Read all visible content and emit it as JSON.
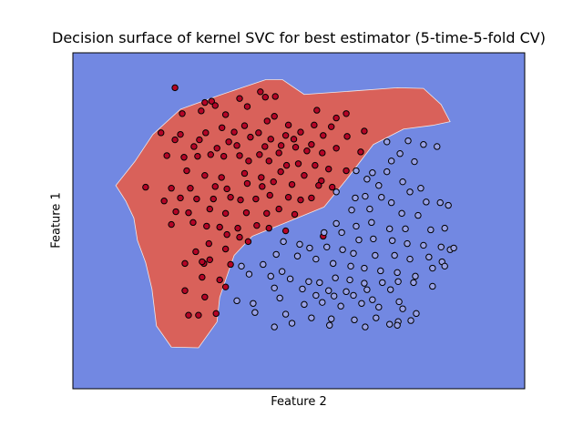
{
  "chart_data": {
    "type": "scatter",
    "title": "Decision surface of kernel SVC for best estimator (5-time-5-fold CV)",
    "xlabel": "Feature 2",
    "ylabel": "Feature 1",
    "xlim": [
      0,
      100
    ],
    "ylim": [
      0,
      100
    ],
    "ticks": "none",
    "grid": false,
    "colors": {
      "background_region": "#7288e2",
      "decision_region": "#d9615a",
      "class_0_point": "#9aa3e8",
      "class_1_point": "#b40426",
      "point_edge": "#000000"
    },
    "decision_region_outline": [
      [
        9.5,
        60.5
      ],
      [
        11.7,
        55.9
      ],
      [
        13.5,
        50.8
      ],
      [
        14.3,
        44.1
      ],
      [
        16.1,
        37.6
      ],
      [
        17.5,
        29.7
      ],
      [
        18.5,
        18.7
      ],
      [
        21.8,
        12.4
      ],
      [
        27.8,
        12.2
      ],
      [
        31.9,
        19.9
      ],
      [
        32.5,
        27.2
      ],
      [
        34.3,
        34.3
      ],
      [
        35.7,
        39.7
      ],
      [
        39.7,
        45.4
      ],
      [
        47.6,
        49.7
      ],
      [
        55.6,
        54.1
      ],
      [
        60.5,
        62.2
      ],
      [
        66.5,
        72.7
      ],
      [
        73.2,
        77.3
      ],
      [
        79.6,
        78.4
      ],
      [
        83.5,
        79.5
      ],
      [
        81.5,
        84.6
      ],
      [
        77.6,
        89.4
      ],
      [
        71.8,
        89.6
      ],
      [
        61.7,
        88.6
      ],
      [
        51.2,
        87.6
      ],
      [
        46.4,
        92.0
      ],
      [
        42.7,
        92.0
      ],
      [
        32.3,
        87.3
      ],
      [
        23.8,
        83.2
      ],
      [
        17.7,
        75.7
      ],
      [
        13.7,
        67.6
      ],
      [
        9.5,
        60.5
      ]
    ],
    "series": [
      {
        "values": [
          [
            22.6,
            89.6
          ],
          [
            41.5,
            88.4
          ],
          [
            44.8,
            87.0
          ],
          [
            42.6,
            86.8
          ],
          [
            36.9,
            86.4
          ],
          [
            30.7,
            85.6
          ],
          [
            29.2,
            85.2
          ],
          [
            31.5,
            84.3
          ],
          [
            38.6,
            84.0
          ],
          [
            28.4,
            82.7
          ],
          [
            24.2,
            81.9
          ],
          [
            33.8,
            81.6
          ],
          [
            44.6,
            81.1
          ],
          [
            54.0,
            82.9
          ],
          [
            60.5,
            81.9
          ],
          [
            58.3,
            80.6
          ],
          [
            43.0,
            79.7
          ],
          [
            38.0,
            78.3
          ],
          [
            33.0,
            77.7
          ],
          [
            47.7,
            78.5
          ],
          [
            53.4,
            78.5
          ],
          [
            57.2,
            78.0
          ],
          [
            35.7,
            76.4
          ],
          [
            19.5,
            76.2
          ],
          [
            23.8,
            75.7
          ],
          [
            29.4,
            76.2
          ],
          [
            41.1,
            76.2
          ],
          [
            47.1,
            75.4
          ],
          [
            50.4,
            76.4
          ],
          [
            55.4,
            75.4
          ],
          [
            60.7,
            75.1
          ],
          [
            64.5,
            76.7
          ],
          [
            22.6,
            74.1
          ],
          [
            28.0,
            74.1
          ],
          [
            34.5,
            73.5
          ],
          [
            39.3,
            74.9
          ],
          [
            43.8,
            74.3
          ],
          [
            48.9,
            74.3
          ],
          [
            52.8,
            72.7
          ],
          [
            26.8,
            72.1
          ],
          [
            31.9,
            71.6
          ],
          [
            36.3,
            72.4
          ],
          [
            42.5,
            72.1
          ],
          [
            46.1,
            72.4
          ],
          [
            49.3,
            71.9
          ],
          [
            51.8,
            70.8
          ],
          [
            55.2,
            70.2
          ],
          [
            58.3,
            71.6
          ],
          [
            63.7,
            70.5
          ],
          [
            36.9,
            69.4
          ],
          [
            41.3,
            69.7
          ],
          [
            45.6,
            70.2
          ],
          [
            20.8,
            69.4
          ],
          [
            24.6,
            68.9
          ],
          [
            27.6,
            69.2
          ],
          [
            30.5,
            69.7
          ],
          [
            33.4,
            69.2
          ],
          [
            38.9,
            67.8
          ],
          [
            43.4,
            67.8
          ],
          [
            49.9,
            67.0
          ],
          [
            53.6,
            66.5
          ],
          [
            47.3,
            66.5
          ],
          [
            56.6,
            65.4
          ],
          [
            60.5,
            64.9
          ],
          [
            25.2,
            64.9
          ],
          [
            29.2,
            63.5
          ],
          [
            32.9,
            62.9
          ],
          [
            38.0,
            64.1
          ],
          [
            41.7,
            62.9
          ],
          [
            46.0,
            64.6
          ],
          [
            51.2,
            63.5
          ],
          [
            55.0,
            61.9
          ],
          [
            16.1,
            60.0
          ],
          [
            21.8,
            59.7
          ],
          [
            26.0,
            59.7
          ],
          [
            31.5,
            60.2
          ],
          [
            34.1,
            59.5
          ],
          [
            38.6,
            61.1
          ],
          [
            41.9,
            60.2
          ],
          [
            44.4,
            61.6
          ],
          [
            48.5,
            60.8
          ],
          [
            54.4,
            60.5
          ],
          [
            57.4,
            60.0
          ],
          [
            20.2,
            55.9
          ],
          [
            23.8,
            56.8
          ],
          [
            27.4,
            56.5
          ],
          [
            31.1,
            56.5
          ],
          [
            34.9,
            57.0
          ],
          [
            37.1,
            56.2
          ],
          [
            40.5,
            56.5
          ],
          [
            43.6,
            57.6
          ],
          [
            47.7,
            57.0
          ],
          [
            50.4,
            56.2
          ],
          [
            52.8,
            56.8
          ],
          [
            22.8,
            52.7
          ],
          [
            25.6,
            52.4
          ],
          [
            30.3,
            53.5
          ],
          [
            33.8,
            52.2
          ],
          [
            38.4,
            52.4
          ],
          [
            42.9,
            52.2
          ],
          [
            45.6,
            53.5
          ],
          [
            49.1,
            51.9
          ],
          [
            21.8,
            48.9
          ],
          [
            26.6,
            49.5
          ],
          [
            29.6,
            48.4
          ],
          [
            32.5,
            48.1
          ],
          [
            36.5,
            47.8
          ],
          [
            40.7,
            48.6
          ],
          [
            43.4,
            47.8
          ],
          [
            47.1,
            47.0
          ],
          [
            55.4,
            45.4
          ],
          [
            34.1,
            45.9
          ],
          [
            36.9,
            45.1
          ],
          [
            38.8,
            43.8
          ],
          [
            30.1,
            43.2
          ],
          [
            33.8,
            41.6
          ],
          [
            27.2,
            40.8
          ],
          [
            29.0,
            37.3
          ],
          [
            24.8,
            37.3
          ],
          [
            28.6,
            37.8
          ],
          [
            30.3,
            38.4
          ],
          [
            34.9,
            37.0
          ],
          [
            28.6,
            33.2
          ],
          [
            32.5,
            32.4
          ],
          [
            33.8,
            30.3
          ],
          [
            24.8,
            29.2
          ],
          [
            29.2,
            27.3
          ],
          [
            25.6,
            21.9
          ],
          [
            27.8,
            21.9
          ],
          [
            31.7,
            22.4
          ]
        ]
      },
      {
        "values": [
          [
            69.5,
            73.5
          ],
          [
            74.2,
            73.8
          ],
          [
            77.6,
            72.7
          ],
          [
            80.6,
            72.1
          ],
          [
            72.4,
            70.0
          ],
          [
            70.5,
            67.8
          ],
          [
            75.6,
            67.6
          ],
          [
            69.5,
            64.6
          ],
          [
            66.3,
            64.3
          ],
          [
            62.7,
            64.9
          ],
          [
            65.1,
            62.4
          ],
          [
            67.7,
            60.5
          ],
          [
            73.0,
            61.6
          ],
          [
            77.0,
            59.7
          ],
          [
            74.6,
            58.6
          ],
          [
            64.7,
            57.3
          ],
          [
            68.3,
            57.0
          ],
          [
            70.5,
            55.4
          ],
          [
            81.3,
            55.4
          ],
          [
            62.5,
            56.8
          ],
          [
            58.3,
            58.6
          ],
          [
            61.7,
            53.2
          ],
          [
            65.7,
            53.5
          ],
          [
            72.8,
            52.2
          ],
          [
            76.4,
            51.6
          ],
          [
            78.2,
            55.6
          ],
          [
            83.1,
            54.6
          ],
          [
            58.3,
            49.2
          ],
          [
            62.7,
            48.4
          ],
          [
            66.1,
            49.5
          ],
          [
            70.1,
            47.6
          ],
          [
            73.6,
            47.6
          ],
          [
            79.2,
            47.3
          ],
          [
            82.3,
            47.8
          ],
          [
            55.6,
            46.5
          ],
          [
            59.5,
            46.5
          ],
          [
            63.3,
            44.3
          ],
          [
            66.5,
            44.6
          ],
          [
            70.7,
            44.1
          ],
          [
            74.0,
            43.2
          ],
          [
            77.6,
            42.7
          ],
          [
            81.5,
            42.2
          ],
          [
            83.5,
            41.4
          ],
          [
            84.3,
            41.9
          ],
          [
            46.6,
            43.8
          ],
          [
            50.2,
            43.0
          ],
          [
            52.4,
            41.9
          ],
          [
            56.2,
            42.2
          ],
          [
            59.7,
            41.4
          ],
          [
            62.1,
            40.3
          ],
          [
            66.9,
            39.7
          ],
          [
            71.2,
            39.7
          ],
          [
            74.6,
            38.6
          ],
          [
            78.8,
            39.2
          ],
          [
            81.7,
            37.8
          ],
          [
            45.0,
            40.0
          ],
          [
            49.7,
            39.5
          ],
          [
            53.8,
            38.6
          ],
          [
            57.6,
            37.3
          ],
          [
            61.5,
            36.5
          ],
          [
            64.5,
            35.9
          ],
          [
            68.1,
            35.1
          ],
          [
            71.8,
            34.6
          ],
          [
            75.8,
            33.5
          ],
          [
            79.6,
            35.9
          ],
          [
            82.3,
            36.5
          ],
          [
            37.3,
            36.5
          ],
          [
            42.1,
            37.0
          ],
          [
            46.3,
            34.9
          ],
          [
            39.0,
            34.1
          ],
          [
            43.8,
            33.5
          ],
          [
            48.1,
            32.7
          ],
          [
            52.2,
            31.9
          ],
          [
            54.6,
            31.6
          ],
          [
            58.1,
            33.0
          ],
          [
            61.3,
            32.4
          ],
          [
            64.5,
            31.4
          ],
          [
            68.5,
            31.6
          ],
          [
            72.0,
            31.9
          ],
          [
            75.4,
            31.6
          ],
          [
            79.6,
            30.5
          ],
          [
            44.6,
            30.0
          ],
          [
            50.8,
            29.7
          ],
          [
            56.6,
            29.2
          ],
          [
            60.5,
            28.9
          ],
          [
            65.1,
            29.5
          ],
          [
            70.3,
            29.5
          ],
          [
            53.8,
            27.8
          ],
          [
            57.8,
            27.6
          ],
          [
            62.1,
            27.8
          ],
          [
            66.3,
            26.5
          ],
          [
            72.2,
            25.9
          ],
          [
            45.8,
            27.0
          ],
          [
            36.3,
            26.2
          ],
          [
            39.9,
            25.4
          ],
          [
            51.2,
            25.1
          ],
          [
            55.2,
            25.7
          ],
          [
            59.3,
            24.6
          ],
          [
            63.9,
            25.4
          ],
          [
            67.7,
            24.3
          ],
          [
            73.0,
            23.8
          ],
          [
            76.0,
            22.4
          ],
          [
            40.3,
            22.7
          ],
          [
            47.1,
            22.2
          ],
          [
            52.8,
            21.1
          ],
          [
            57.2,
            20.8
          ],
          [
            62.3,
            20.5
          ],
          [
            67.1,
            21.1
          ],
          [
            72.0,
            20.0
          ],
          [
            48.5,
            19.5
          ],
          [
            56.8,
            18.9
          ],
          [
            64.7,
            18.4
          ],
          [
            70.1,
            19.2
          ],
          [
            71.8,
            18.9
          ],
          [
            44.6,
            18.4
          ],
          [
            74.8,
            20.3
          ]
        ]
      }
    ]
  }
}
